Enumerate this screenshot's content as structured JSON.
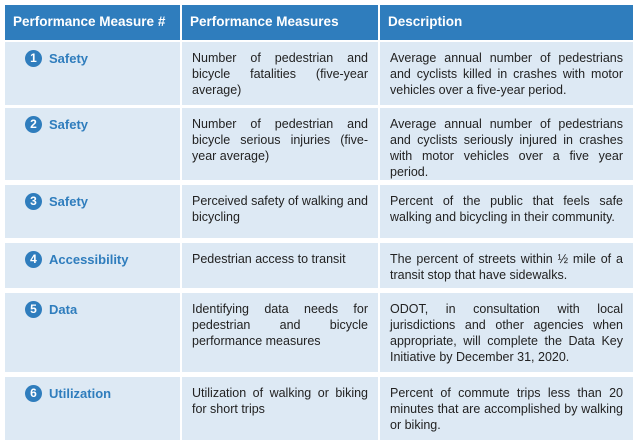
{
  "table": {
    "header": [
      "Performance Measure #",
      "Performance Measures",
      "Description"
    ],
    "rows": [
      {
        "number": "1",
        "label": "Safety",
        "measure": "Number of pedestrian and bicycle fatalities (five-year average)",
        "description": "Average annual number of pedestrians and cyclists killed in crashes with motor vehicles over a five-year period."
      },
      {
        "number": "2",
        "label": "Safety",
        "measure": "Number of pedestrian and bicycle serious injuries (five-year average)",
        "description": "Average annual number of pedestrians and cyclists seriously injured in crashes with motor vehicles over a five year period."
      },
      {
        "number": "3",
        "label": "Safety",
        "measure": "Perceived safety of walking and bicycling",
        "description": "Percent of the public that feels safe walking and bicycling in their community."
      },
      {
        "number": "4",
        "label": "Accessibility",
        "measure": "Pedestrian access to transit",
        "description": "The percent of streets within ½ mile of a transit stop that have sidewalks."
      },
      {
        "number": "5",
        "label": "Data",
        "measure": "Identifying data needs for pedestrian and bicycle performance measures",
        "description": "ODOT, in consultation with local jurisdictions and other agencies when appropriate, will complete the Data Key Initiative by December 31, 2020."
      },
      {
        "number": "6",
        "label": "Utilization",
        "measure": "Utilization of walking or biking for short trips",
        "description": "Percent of commute trips less than 20 minutes that are accomplished by walking or biking."
      }
    ]
  }
}
